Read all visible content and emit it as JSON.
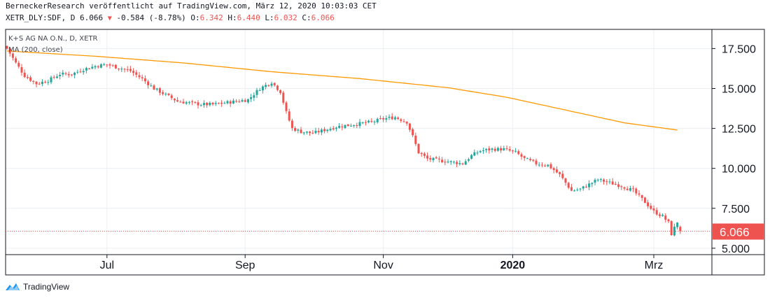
{
  "header": {
    "line1": "BerneckerResearch veröffentlicht auf TradingView.com, März 12, 2020 10:03:03 CET",
    "symbol": "XETR_DLY:SDF, D 6.066",
    "change": "-0.584 (-8.78%)",
    "o_label": "O:",
    "o_value": "6.342",
    "h_label": "H:",
    "h_value": "6.440",
    "l_label": "L:",
    "l_value": "6.032",
    "c_label": "C:",
    "c_value": "6.066"
  },
  "legend": {
    "instrument": "K+S AG NA O.N., D, XETR",
    "indicator": "MA (200, close)"
  },
  "footer": {
    "brand": "TradingView"
  },
  "colors": {
    "up": "#26a69a",
    "down": "#ef5350",
    "ma": "#ff9800",
    "grid": "#eceff2",
    "axis": "#131722"
  },
  "chart_data": {
    "type": "candlestick",
    "title": "K+S AG NA O.N., D, XETR",
    "y_ticks": [
      "17.500",
      "15.000",
      "12.500",
      "10.000",
      "7.500",
      "5.000"
    ],
    "y_tick_values": [
      17.5,
      15.0,
      12.5,
      10.0,
      7.5,
      5.0
    ],
    "x_ticks": [
      "Jul",
      "Sep",
      "Nov",
      "2020",
      "Mrz"
    ],
    "x_tick_bold": [
      false,
      false,
      false,
      true,
      false
    ],
    "x_tick_index": [
      34,
      81,
      128,
      172,
      220
    ],
    "ylim": [
      4.6,
      18.7
    ],
    "last_price": 6.066,
    "last_price_label": "6.066",
    "ma_label": "MA (200, close)",
    "ma_values": [
      17.35,
      17.02,
      16.6,
      16.05,
      15.62,
      15.05,
      14.45,
      13.65,
      12.85,
      12.4
    ],
    "ma_index": [
      0,
      30,
      60,
      90,
      120,
      150,
      170,
      190,
      210,
      228
    ],
    "close_path": [
      [
        0,
        17.5
      ],
      [
        3,
        16.6
      ],
      [
        6,
        15.8
      ],
      [
        10,
        15.3
      ],
      [
        14,
        15.5
      ],
      [
        18,
        15.9
      ],
      [
        22,
        15.9
      ],
      [
        26,
        16.2
      ],
      [
        30,
        16.4
      ],
      [
        34,
        16.5
      ],
      [
        38,
        16.3
      ],
      [
        42,
        16.1
      ],
      [
        46,
        15.6
      ],
      [
        50,
        15.0
      ],
      [
        54,
        14.6
      ],
      [
        58,
        14.2
      ],
      [
        62,
        14.1
      ],
      [
        66,
        14.0
      ],
      [
        70,
        14.0
      ],
      [
        74,
        14.1
      ],
      [
        78,
        14.2
      ],
      [
        82,
        14.3
      ],
      [
        86,
        15.0
      ],
      [
        90,
        15.4
      ],
      [
        93,
        14.8
      ],
      [
        95,
        13.5
      ],
      [
        97,
        12.5
      ],
      [
        100,
        12.3
      ],
      [
        104,
        12.2
      ],
      [
        108,
        12.4
      ],
      [
        112,
        12.6
      ],
      [
        116,
        12.7
      ],
      [
        120,
        12.8
      ],
      [
        124,
        12.9
      ],
      [
        128,
        13.1
      ],
      [
        132,
        13.2
      ],
      [
        136,
        12.9
      ],
      [
        138,
        12.0
      ],
      [
        140,
        11.0
      ],
      [
        143,
        10.6
      ],
      [
        147,
        10.5
      ],
      [
        151,
        10.4
      ],
      [
        155,
        10.3
      ],
      [
        158,
        10.8
      ],
      [
        161,
        11.1
      ],
      [
        165,
        11.2
      ],
      [
        169,
        11.2
      ],
      [
        173,
        11.0
      ],
      [
        176,
        10.6
      ],
      [
        180,
        10.3
      ],
      [
        184,
        10.2
      ],
      [
        188,
        9.6
      ],
      [
        192,
        8.6
      ],
      [
        195,
        8.7
      ],
      [
        198,
        9.0
      ],
      [
        201,
        9.3
      ],
      [
        205,
        9.1
      ],
      [
        209,
        8.9
      ],
      [
        213,
        8.6
      ],
      [
        217,
        7.9
      ],
      [
        220,
        7.3
      ],
      [
        223,
        7.0
      ],
      [
        225,
        6.6
      ],
      [
        226,
        5.9
      ],
      [
        228,
        6.65
      ],
      [
        229,
        6.066
      ]
    ]
  }
}
